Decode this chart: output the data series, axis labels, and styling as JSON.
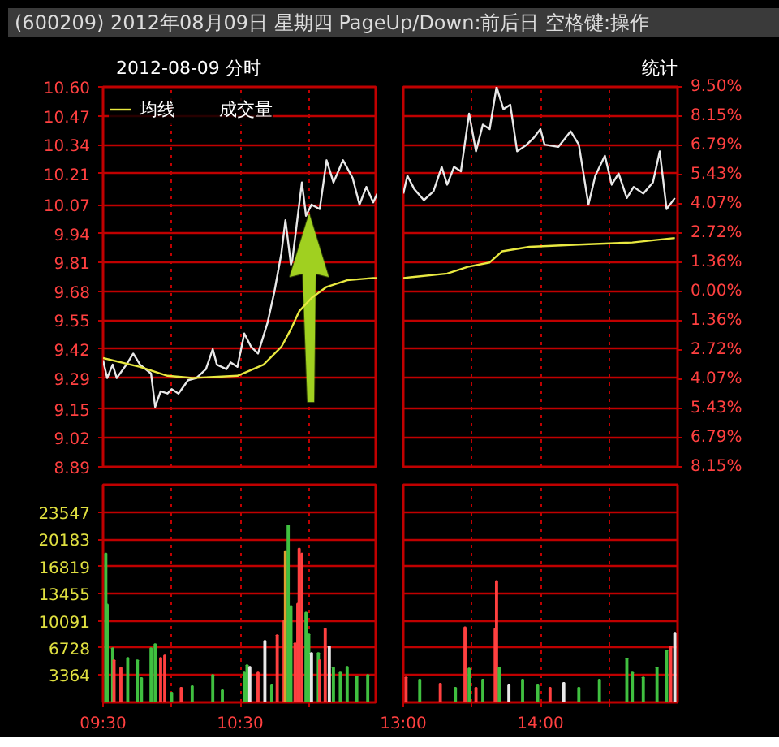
{
  "chart_data": [
    {
      "type": "line",
      "title": "(600209) 2012年08月09日 星期四 PageUp/Down:前后日 空格键:操作",
      "subtitle": "2012-08-09 分时",
      "xlim": [
        9.5,
        11.5
      ],
      "xticks": [
        {
          "value": 9.5,
          "label": null
        },
        {
          "value": 10,
          "label": null
        },
        {
          "value": 10.5,
          "label": null
        },
        {
          "value": 11,
          "label": null
        }
      ],
      "ylim": [
        8.89,
        10.6
      ],
      "yticks": [
        {
          "value": 10.6,
          "label": "10.60"
        },
        10.47,
        10.34,
        10.21,
        10.07,
        9.94,
        9.81,
        9.68,
        9.55,
        9.42,
        9.29,
        9.15,
        9.02,
        8.89
      ],
      "grid": true,
      "legend": "top left",
      "tick_labels": "y",
      "series": [
        {
          "color": "#e8e8e8",
          "x": [
            9.5,
            9.53,
            9.57,
            9.6,
            9.67,
            9.72,
            9.77,
            9.85,
            9.88,
            9.92,
            9.97,
            10,
            10.05,
            10.12,
            10.18,
            10.25,
            10.3,
            10.33,
            10.4,
            10.43,
            10.48,
            10.53,
            10.58,
            10.63,
            10.7,
            10.75,
            10.8,
            10.83,
            10.87,
            10.88,
            10.92,
            10.95,
            10.98,
            11.02,
            11.08,
            11.13,
            11.18,
            11.25,
            11.32,
            11.37,
            11.42,
            11.47,
            11.5
          ],
          "values": [
            9.37,
            9.29,
            9.35,
            9.29,
            9.35,
            9.4,
            9.35,
            9.31,
            9.16,
            9.23,
            9.22,
            9.24,
            9.22,
            9.28,
            9.29,
            9.33,
            9.42,
            9.35,
            9.33,
            9.36,
            9.34,
            9.49,
            9.43,
            9.4,
            9.54,
            9.68,
            9.85,
            10.0,
            9.8,
            9.82,
            10.02,
            10.17,
            10.02,
            10.07,
            10.05,
            10.27,
            10.17,
            10.27,
            10.19,
            10.07,
            10.15,
            10.08,
            10.12
          ]
        },
        {
          "name": "均线",
          "color": "#e8e840",
          "x": [
            9.5,
            9.77,
            9.97,
            10.15,
            10.48,
            10.67,
            10.8,
            10.87,
            10.93,
            11.02,
            11.13,
            11.28,
            11.47,
            11.5
          ],
          "values": [
            9.38,
            9.34,
            9.3,
            9.29,
            9.3,
            9.35,
            9.43,
            9.51,
            9.59,
            9.65,
            9.7,
            9.73,
            9.74,
            9.74
          ]
        }
      ]
    },
    {
      "type": "line",
      "annotations": [
        "统计"
      ],
      "xlim": [
        13,
        15
      ],
      "xticks": [
        {
          "value": 13,
          "label": null
        },
        {
          "value": 13.5,
          "label": null
        },
        {
          "value": 14,
          "label": null
        },
        {
          "value": 14.5,
          "label": null
        }
      ],
      "ylim": [
        8.89,
        10.6
      ],
      "yticks": [
        10.6,
        10.47,
        10.34,
        10.21,
        10.07,
        9.94,
        9.81,
        9.68,
        9.55,
        9.42,
        9.29,
        9.15,
        9.02,
        8.89
      ],
      "y2lim": [
        -8.15,
        9.5
      ],
      "y2ticks": [
        {
          "value": 9.5,
          "label": "9.50%"
        },
        {
          "value": 8.15,
          "label": "8.15%"
        },
        {
          "value": 6.79,
          "label": "6.79%"
        },
        {
          "value": 5.43,
          "label": "5.43%"
        },
        {
          "value": 4.07,
          "label": "4.07%"
        },
        {
          "value": 2.72,
          "label": "2.72%"
        },
        {
          "value": 1.36,
          "label": "1.36%"
        },
        {
          "value": 0,
          "label": "0.00%"
        },
        {
          "value": -1.36,
          "label": "1.36%"
        },
        {
          "value": -2.72,
          "label": "2.72%"
        },
        {
          "value": -4.07,
          "label": "4.07%"
        },
        {
          "value": -5.43,
          "label": "5.43%"
        },
        {
          "value": -6.79,
          "label": "6.79%"
        },
        {
          "value": -8.15,
          "label": "8.15%"
        }
      ],
      "grid": true,
      "tick_labels": false,
      "series": [
        {
          "color": "#e8e8e8",
          "x": [
            13,
            13.03,
            13.08,
            13.15,
            13.22,
            13.28,
            13.32,
            13.37,
            13.42,
            13.48,
            13.53,
            13.58,
            13.63,
            13.68,
            13.73,
            13.78,
            13.83,
            13.9,
            13.95,
            14,
            14.03,
            14.13,
            14.22,
            14.28,
            14.35,
            14.4,
            14.47,
            14.52,
            14.57,
            14.63,
            14.68,
            14.75,
            14.82,
            14.87,
            14.92,
            14.98
          ],
          "values": [
            10.12,
            10.2,
            10.14,
            10.09,
            10.13,
            10.24,
            10.16,
            10.24,
            10.22,
            10.48,
            10.31,
            10.43,
            10.41,
            10.6,
            10.5,
            10.52,
            10.31,
            10.34,
            10.37,
            10.41,
            10.34,
            10.33,
            10.4,
            10.34,
            10.07,
            10.2,
            10.29,
            10.16,
            10.21,
            10.1,
            10.15,
            10.12,
            10.17,
            10.31,
            10.05,
            10.1
          ]
        },
        {
          "color": "#e8e840",
          "x": [
            13,
            13.32,
            13.47,
            13.63,
            13.72,
            13.92,
            14.28,
            14.67,
            14.98
          ],
          "values": [
            9.74,
            9.76,
            9.79,
            9.81,
            9.86,
            9.88,
            9.89,
            9.9,
            9.92
          ]
        }
      ]
    },
    {
      "type": "bar",
      "xlim": [
        9.5,
        11.5
      ],
      "xticks": [
        {
          "value": 9.5,
          "label": "09:30"
        },
        {
          "value": 10,
          "label": null
        },
        {
          "value": 10.5,
          "label": "10:30"
        },
        {
          "value": 11,
          "label": null
        }
      ],
      "ylim": [
        0,
        26911
      ],
      "yticks": [
        3364,
        6728,
        10091,
        13455,
        16819,
        20183,
        23547
      ],
      "grid": true,
      "series": [
        {
          "name": "成交量",
          "x": [
            9.52,
            9.53,
            9.57,
            9.58,
            9.63,
            9.68,
            9.75,
            9.78,
            9.85,
            9.88,
            9.92,
            9.95,
            10,
            10.07,
            10.15,
            10.3,
            10.37,
            10.53,
            10.55,
            10.57,
            10.63,
            10.68,
            10.73,
            10.77,
            10.82,
            10.83,
            10.85,
            10.87,
            10.9,
            10.92,
            10.93,
            10.95,
            10.98,
            11,
            11.02,
            11.07,
            11.08,
            11.12,
            11.15,
            11.18,
            11.23,
            11.28,
            11.35,
            11.43
          ],
          "values": [
            18400,
            12100,
            6700,
            5200,
            4300,
            5500,
            5200,
            3000,
            6700,
            7200,
            5500,
            5800,
            1200,
            1800,
            2000,
            3400,
            1500,
            3700,
            4600,
            4400,
            3700,
            7600,
            2100,
            8300,
            10100,
            18700,
            21900,
            11900,
            7300,
            12200,
            19000,
            18400,
            11100,
            8400,
            6100,
            6100,
            5200,
            9100,
            6900,
            4300,
            3700,
            4400,
            3200,
            3400
          ],
          "colors": [
            "#40c040",
            "#40c040",
            "#40c040",
            "#ff4040",
            "#ff4040",
            "#40c040",
            "#40c040",
            "#40c040",
            "#40c040",
            "#40c040",
            "#ff4040",
            "#ff4040",
            "#40c040",
            "#ff4040",
            "#40c040",
            "#40c040",
            "#40c040",
            "#40c040",
            "#40c040",
            "#e8e8e8",
            "#ff4040",
            "#e8e8e8",
            "#40c040",
            "#ff4040",
            "#ff4040",
            "#e0a030",
            "#40c040",
            "#40c040",
            "#ff4040",
            "#ff4040",
            "#ff4040",
            "#ff4040",
            "#40c040",
            "#40c040",
            "#e8e8e8",
            "#40c040",
            "#ff4040",
            "#ff4040",
            "#e8e8e8",
            "#40c040",
            "#40c040",
            "#40c040",
            "#40c040",
            "#40c040"
          ]
        }
      ]
    },
    {
      "type": "bar",
      "xlim": [
        13,
        15
      ],
      "xticks": [
        {
          "value": 13,
          "label": "13:00"
        },
        {
          "value": 13.5,
          "label": null
        },
        {
          "value": 14,
          "label": "14:00"
        },
        {
          "value": 14.5,
          "label": null
        }
      ],
      "ylim": [
        0,
        26911
      ],
      "yticks": [
        3364,
        6728,
        10091,
        13455,
        16819,
        20183,
        23547
      ],
      "grid": true,
      "tick_labels": "x",
      "series": [
        {
          "x": [
            13.02,
            13.12,
            13.27,
            13.38,
            13.45,
            13.48,
            13.53,
            13.58,
            13.67,
            13.68,
            13.7,
            13.77,
            13.87,
            13.98,
            14.07,
            14.17,
            14.28,
            14.43,
            14.63,
            14.67,
            14.75,
            14.85,
            14.92,
            14.95,
            14.98
          ],
          "values": [
            3100,
            2800,
            2300,
            1800,
            9300,
            4200,
            1800,
            2800,
            9100,
            15000,
            4300,
            2100,
            2800,
            2100,
            1800,
            2400,
            1800,
            2800,
            5400,
            3700,
            3100,
            4300,
            6400,
            6900,
            8600
          ],
          "colors": [
            "#ff4040",
            "#40c040",
            "#ff4040",
            "#40c040",
            "#ff4040",
            "#40c040",
            "#ff4040",
            "#40c040",
            "#ff4040",
            "#ff4040",
            "#40c040",
            "#e8e8e8",
            "#40c040",
            "#40c040",
            "#ff4040",
            "#e8e8e8",
            "#40c040",
            "#40c040",
            "#40c040",
            "#40c040",
            "#40c040",
            "#40c040",
            "#40c040",
            "#ff4040",
            "#e8e8e8"
          ]
        }
      ]
    }
  ]
}
